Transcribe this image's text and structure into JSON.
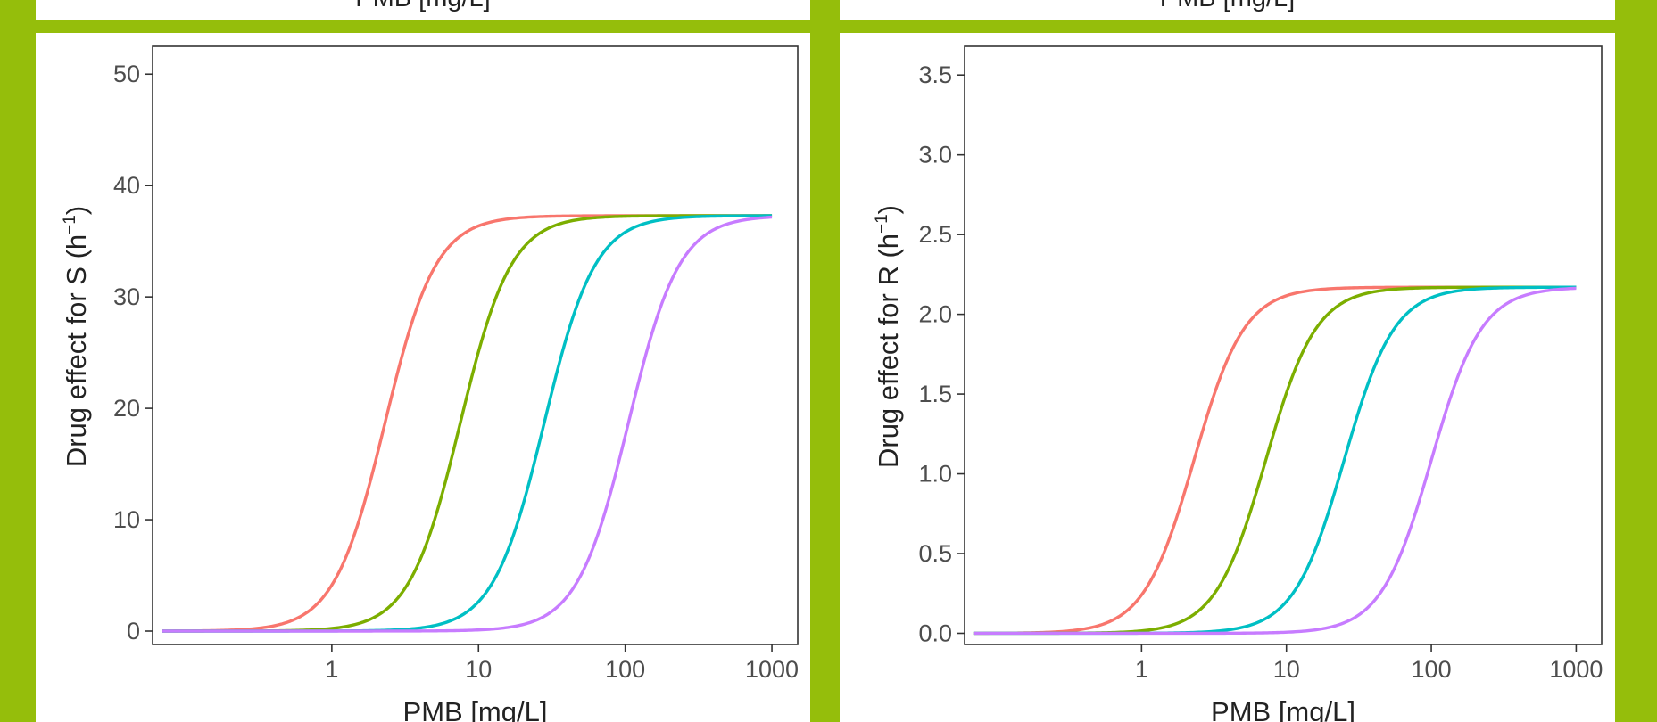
{
  "top_partial": {
    "left_xlabel": "PMB [mg/L]",
    "right_xlabel": "PMB [mg/L]"
  },
  "chart_data": [
    {
      "type": "line",
      "xscale": "log",
      "xlabel": "PMB [mg/L]",
      "ylabel_main": "Drug effect for S (h",
      "ylabel_sup": "−1",
      "ylabel_close": ")",
      "x_ticks": [
        1,
        10,
        100,
        1000
      ],
      "x_tick_labels": [
        "1",
        "10",
        "100",
        "1000"
      ],
      "y_ticks": [
        0,
        10,
        20,
        30,
        40,
        50
      ],
      "y_tick_labels": [
        "0",
        "10",
        "20",
        "30",
        "40",
        "50"
      ],
      "xlim": [
        0.06,
        1500
      ],
      "ylim": [
        -1.2,
        52.5
      ],
      "emax": 37.3,
      "hill": 2.5,
      "series": [
        {
          "ec50": 2.3,
          "color": "#F8766D"
        },
        {
          "ec50": 7.5,
          "color": "#7CAE00"
        },
        {
          "ec50": 28,
          "color": "#00BFC4"
        },
        {
          "ec50": 105,
          "color": "#C77CFF"
        }
      ],
      "x_data_range": [
        0.07,
        1000
      ],
      "grid": false
    },
    {
      "type": "line",
      "xscale": "log",
      "xlabel": "PMB [mg/L]",
      "ylabel_main": "Drug effect for R (h",
      "ylabel_sup": "−1",
      "ylabel_close": ")",
      "x_ticks": [
        1,
        10,
        100,
        1000
      ],
      "x_tick_labels": [
        "1",
        "10",
        "100",
        "1000"
      ],
      "y_ticks": [
        0,
        0.5,
        1,
        1.5,
        2,
        2.5,
        3,
        3.5
      ],
      "y_tick_labels": [
        "0.0",
        "0.5",
        "1.0",
        "1.5",
        "2.0",
        "2.5",
        "3.0",
        "3.5"
      ],
      "xlim": [
        0.06,
        1500
      ],
      "ylim": [
        -0.07,
        3.68
      ],
      "emax": 2.17,
      "hill": 2.5,
      "series": [
        {
          "ec50": 2.3,
          "color": "#F8766D"
        },
        {
          "ec50": 7.2,
          "color": "#7CAE00"
        },
        {
          "ec50": 25,
          "color": "#00BFC4"
        },
        {
          "ec50": 100,
          "color": "#C77CFF"
        }
      ],
      "x_data_range": [
        0.07,
        1000
      ],
      "grid": false
    }
  ]
}
